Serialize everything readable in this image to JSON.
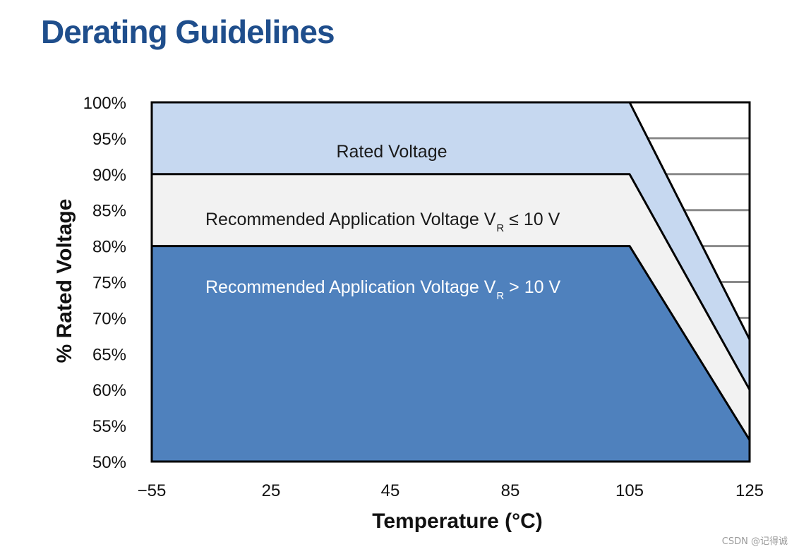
{
  "title": "Derating Guidelines",
  "chart_data": {
    "type": "area",
    "xlabel": "Temperature (°C)",
    "ylabel": "% Rated Voltage",
    "x_ticks": [
      "−55",
      "25",
      "45",
      "85",
      "105",
      "125"
    ],
    "y_ticks": [
      "100%",
      "95%",
      "90%",
      "85%",
      "80%",
      "75%",
      "70%",
      "65%",
      "60%",
      "55%",
      "50%"
    ],
    "ylim": [
      50,
      100
    ],
    "series": [
      {
        "name": "Rated Voltage",
        "color": "#c6d8f0",
        "points": [
          [
            "−55",
            100
          ],
          [
            "105",
            100
          ],
          [
            "125",
            67
          ]
        ]
      },
      {
        "name": "Recommended Application Voltage V_R ≤ 10 V",
        "color": "#f2f2f2",
        "points": [
          [
            "−55",
            90
          ],
          [
            "105",
            90
          ],
          [
            "125",
            60
          ]
        ]
      },
      {
        "name": "Recommended Application Voltage V_R > 10 V",
        "color": "#4f81bd",
        "points": [
          [
            "−55",
            80
          ],
          [
            "105",
            80
          ],
          [
            "125",
            53
          ]
        ]
      }
    ],
    "region_labels": [
      {
        "pre": "Rated Voltage",
        "sub": "",
        "post": "",
        "color": "#1a1a1a"
      },
      {
        "pre": "Recommended Application Voltage V",
        "sub": "R",
        "post": " ≤ 10 V",
        "color": "#1a1a1a"
      },
      {
        "pre": "Recommended Application Voltage V",
        "sub": "R",
        "post": "  > 10 V",
        "color": "#ffffff"
      }
    ]
  },
  "watermark": "CSDN @记得诚"
}
